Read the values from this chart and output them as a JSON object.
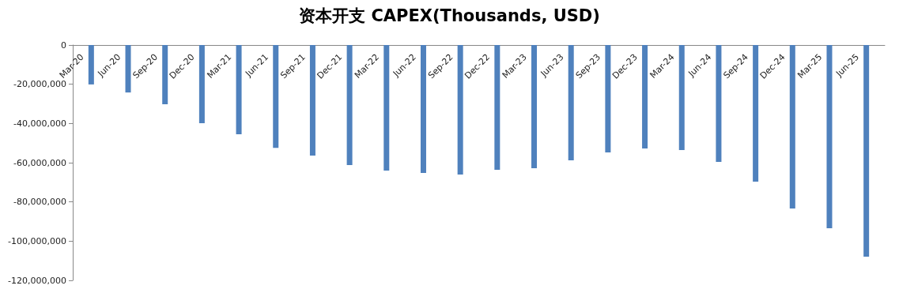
{
  "chart_data": {
    "type": "bar",
    "title": "资本开支 CAPEX(Thousands, USD)",
    "categories": [
      "Mar-20",
      "Jun-20",
      "Sep-20",
      "Dec-20",
      "Mar-21",
      "Jun-21",
      "Sep-21",
      "Dec-21",
      "Mar-22",
      "Jun-22",
      "Sep-22",
      "Dec-22",
      "Mar-23",
      "Jun-23",
      "Sep-23",
      "Dec-23",
      "Mar-24",
      "Jun-24",
      "Sep-24",
      "Dec-24",
      "Mar-25",
      "Jun-25"
    ],
    "values": [
      -20100000,
      -24200000,
      -30200000,
      -39900000,
      -45500000,
      -52400000,
      -56400000,
      -61200000,
      -64000000,
      -65200000,
      -66000000,
      -63600000,
      -62800000,
      -58800000,
      -54800000,
      -52800000,
      -53600000,
      -59600000,
      -69700000,
      -83400000,
      -93400000,
      -107900000
    ],
    "color": "#4f81bd",
    "ylim": [
      -120000000,
      0
    ],
    "yticks": [
      {
        "value": -120000000,
        "label": "-120,000,000"
      },
      {
        "value": -100000000,
        "label": "-100,000,000"
      },
      {
        "value": -80000000,
        "label": "-80,000,000"
      },
      {
        "value": -60000000,
        "label": "-60,000,000"
      },
      {
        "value": -40000000,
        "label": "-40,000,000"
      },
      {
        "value": -20000000,
        "label": "-20,000,000"
      },
      {
        "value": 0,
        "label": "0"
      }
    ],
    "grid": false
  }
}
